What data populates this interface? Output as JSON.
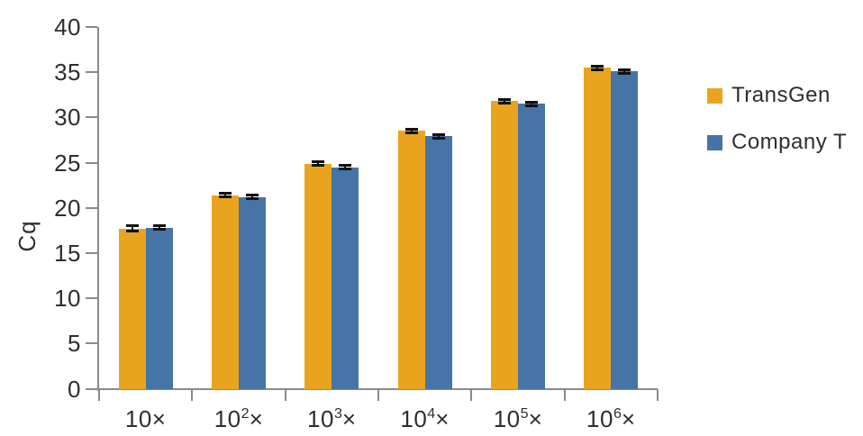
{
  "chart_data": {
    "type": "bar",
    "title": "",
    "xlabel": "",
    "ylabel": "Cq",
    "ylim": [
      0,
      40
    ],
    "y_ticks": [
      0,
      5,
      10,
      15,
      20,
      25,
      30,
      35,
      40
    ],
    "grid": false,
    "legend_position": "right",
    "axis_color": "#8a8a8a",
    "text_color": "#2e2e2e",
    "errorbar_color": "#111111",
    "categories": [
      {
        "base": "10",
        "exp": "",
        "times": "×"
      },
      {
        "base": "10",
        "exp": "2",
        "times": "×"
      },
      {
        "base": "10",
        "exp": "3",
        "times": "×"
      },
      {
        "base": "10",
        "exp": "4",
        "times": "×"
      },
      {
        "base": "10",
        "exp": "5",
        "times": "×"
      },
      {
        "base": "10",
        "exp": "6",
        "times": "×"
      }
    ],
    "series": [
      {
        "name": "TransGen",
        "color": "#e9a41f",
        "values": [
          17.7,
          21.4,
          24.9,
          28.5,
          31.8,
          35.5
        ],
        "errors": [
          0.3,
          0.2,
          0.2,
          0.2,
          0.2,
          0.2
        ]
      },
      {
        "name": "Company T",
        "color": "#4674a6",
        "values": [
          17.8,
          21.2,
          24.5,
          27.9,
          31.5,
          35.1
        ],
        "errors": [
          0.2,
          0.2,
          0.2,
          0.2,
          0.2,
          0.2
        ]
      }
    ]
  }
}
